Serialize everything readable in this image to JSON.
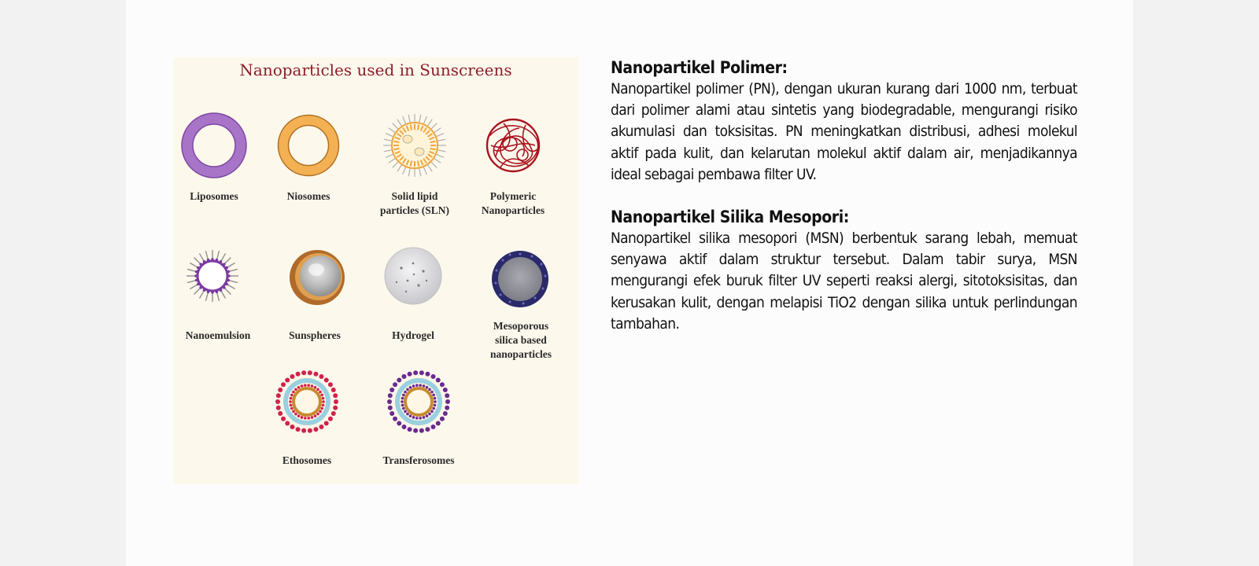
{
  "figure": {
    "title": "Nanoparticles used in Sunscreens",
    "labels": {
      "liposomes": "Liposomes",
      "niosomes": "Niosomes",
      "sln": "Solid lipid\nparticles (SLN)",
      "polymeric": "Polymeric\nNanoparticles",
      "nanoemulsion": "Nanoemulsion",
      "sunspheres": "Sunspheres",
      "hydrogel": "Hydrogel",
      "mesoporous": "Mesoporous\nsilica based\nnanoparticles",
      "ethosomes": "Ethosomes",
      "transferosomes": "Transferosomes"
    },
    "colors": {
      "title": "#8b1f2a",
      "liposome": "#a874c8",
      "niosome": "#f0a640",
      "polymeric": "#a8141e",
      "nanoemulsion": "#7a3aa0",
      "mesoporous": "#2a2a6a",
      "ethosome_heads": "#d0224a",
      "transferosome_heads": "#6a2a90"
    }
  },
  "sections": [
    {
      "heading": "Nanopartikel Polimer:",
      "body": "Nanopartikel polimer (PN), dengan ukuran kurang dari 1000 nm, terbuat dari polimer alami atau sintetis yang biodegradable, mengurangi risiko akumulasi dan toksisitas. PN meningkatkan distribusi, adhesi molekul aktif pada kulit, dan kelarutan molekul aktif dalam air, menjadikannya ideal sebagai pembawa filter UV."
    },
    {
      "heading": "Nanopartikel Silika Mesopori:",
      "body": "Nanopartikel silika mesopori (MSN) berbentuk sarang lebah, memuat senyawa aktif dalam struktur tersebut. Dalam tabir surya, MSN mengurangi efek buruk filter UV seperti reaksi alergi, sitotoksisitas, dan kerusakan kulit, dengan melapisi TiO2 dengan silika untuk perlindungan tambahan."
    }
  ]
}
